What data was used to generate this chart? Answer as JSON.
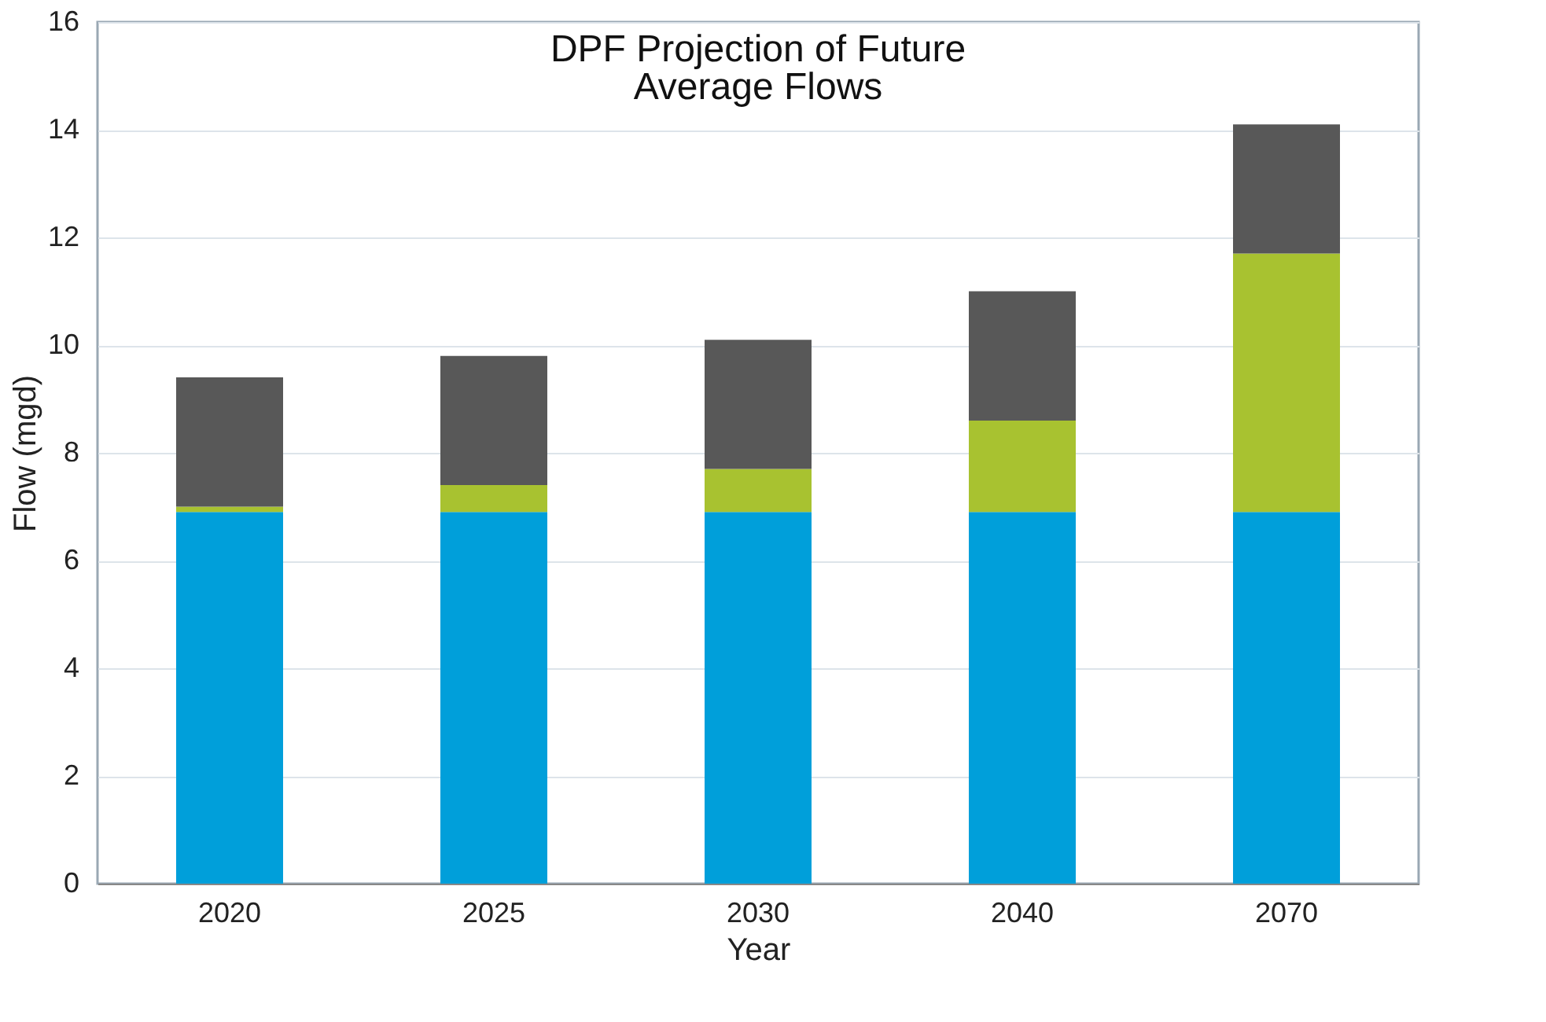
{
  "chart_data": {
    "type": "bar",
    "stacked": true,
    "title": "DPF Projection of Future\nAverage Flows",
    "xlabel": "Year",
    "ylabel": "Flow (mgd)",
    "categories": [
      "2020",
      "2025",
      "2030",
      "2040",
      "2070"
    ],
    "series": [
      {
        "color": "#009fda",
        "values": [
          6.9,
          6.9,
          6.9,
          6.9,
          6.9
        ]
      },
      {
        "color": "#a8c230",
        "values": [
          0.1,
          0.5,
          0.8,
          1.7,
          4.8
        ]
      },
      {
        "color": "#585858",
        "values": [
          2.4,
          2.4,
          2.4,
          2.4,
          2.4
        ]
      }
    ],
    "ylim": [
      0,
      16
    ],
    "yticks": [
      0,
      2,
      4,
      6,
      8,
      10,
      12,
      14,
      16
    ],
    "grid": "y"
  }
}
